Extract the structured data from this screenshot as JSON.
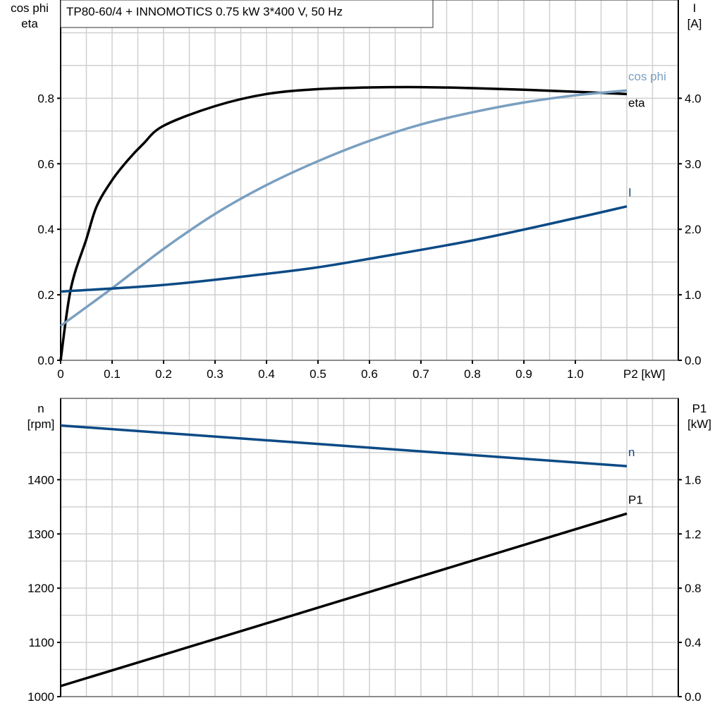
{
  "chart_data": [
    {
      "type": "line",
      "title": "TP80-60/4 + INNOMOTICS   0.75 kW   3*400 V, 50 Hz",
      "xlabel": "P2 [kW]",
      "ylabel_left": [
        "cos phi",
        "eta"
      ],
      "ylabel_right": [
        "I",
        "[A]"
      ],
      "xlim": [
        0,
        1.2
      ],
      "ylim_left": [
        0,
        1.1
      ],
      "ylim_right": [
        0,
        5.5
      ],
      "x_ticks": [
        "0",
        "0.1",
        "0.2",
        "0.3",
        "0.4",
        "0.5",
        "0.6",
        "0.7",
        "0.8",
        "0.9",
        "1.0"
      ],
      "y_left_ticks": [
        "0.0",
        "0.2",
        "0.4",
        "0.6",
        "0.8"
      ],
      "y_right_ticks": [
        "0.0",
        "1.0",
        "2.0",
        "3.0",
        "4.0"
      ],
      "grid": true,
      "colors": {
        "eta": "#000000",
        "cos_phi": "#7a9fc0",
        "I": "#0b4a85"
      },
      "series": [
        {
          "name": "eta",
          "axis": "left",
          "x": [
            0,
            0.02,
            0.05,
            0.07,
            0.1,
            0.13,
            0.16,
            0.2,
            0.3,
            0.4,
            0.5,
            0.6,
            0.7,
            0.8,
            0.9,
            1.0,
            1.1
          ],
          "y": [
            0,
            0.22,
            0.37,
            0.47,
            0.55,
            0.61,
            0.66,
            0.716,
            0.776,
            0.813,
            0.828,
            0.833,
            0.834,
            0.831,
            0.826,
            0.82,
            0.813
          ]
        },
        {
          "name": "cos phi",
          "axis": "left",
          "x": [
            0,
            0.1,
            0.2,
            0.3,
            0.4,
            0.5,
            0.6,
            0.7,
            0.8,
            0.9,
            1.0,
            1.1
          ],
          "y": [
            0.105,
            0.22,
            0.34,
            0.447,
            0.535,
            0.608,
            0.67,
            0.72,
            0.757,
            0.787,
            0.809,
            0.824
          ]
        },
        {
          "name": "I",
          "axis": "right",
          "x": [
            0,
            0.2,
            0.4,
            0.5,
            0.6,
            0.8,
            1.0,
            1.1
          ],
          "y": [
            1.05,
            1.15,
            1.32,
            1.42,
            1.55,
            1.83,
            2.17,
            2.35
          ]
        }
      ]
    },
    {
      "type": "line",
      "ylabel_left": [
        "n",
        "[rpm]"
      ],
      "ylabel_right": [
        "P1",
        "[kW]"
      ],
      "xlim": [
        0,
        1.2
      ],
      "ylim_left": [
        1000,
        1550
      ],
      "ylim_right": [
        0,
        2.2
      ],
      "y_left_ticks": [
        "1000",
        "1100",
        "1200",
        "1300",
        "1400"
      ],
      "y_right_ticks": [
        "0.0",
        "0.4",
        "0.8",
        "1.2",
        "1.6"
      ],
      "grid": true,
      "colors": {
        "n": "#0b4a85",
        "P1": "#000000"
      },
      "series": [
        {
          "name": "n",
          "axis": "left",
          "x": [
            0,
            1.1
          ],
          "y": [
            1500,
            1425
          ]
        },
        {
          "name": "P1",
          "axis": "right",
          "x": [
            0,
            1.1
          ],
          "y": [
            0.078,
            1.35
          ]
        }
      ]
    }
  ]
}
